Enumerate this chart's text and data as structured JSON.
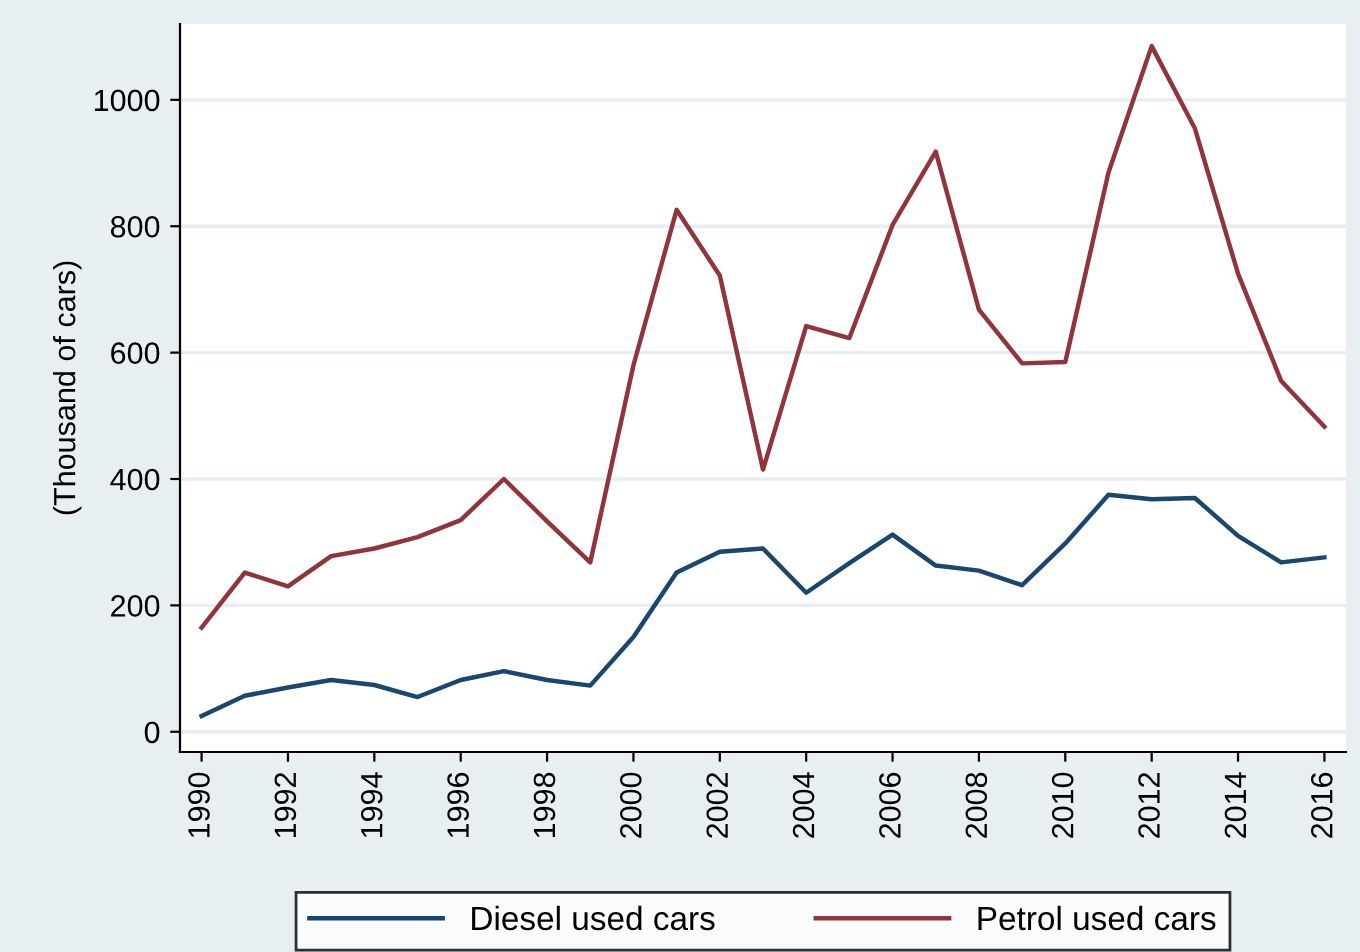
{
  "chart_data": {
    "type": "line",
    "ylabel": "(Thousand of cars)",
    "x": [
      1990,
      1991,
      1992,
      1993,
      1994,
      1995,
      1996,
      1997,
      1998,
      1999,
      2000,
      2001,
      2002,
      2003,
      2004,
      2005,
      2006,
      2007,
      2008,
      2009,
      2010,
      2011,
      2012,
      2013,
      2014,
      2015,
      2016
    ],
    "series": [
      {
        "name": "Diesel used cars",
        "color": "#1a476f",
        "values": [
          25,
          57,
          70,
          82,
          74,
          55,
          82,
          96,
          82,
          73,
          150,
          252,
          285,
          290,
          220,
          267,
          312,
          263,
          255,
          232,
          298,
          375,
          368,
          370,
          310,
          268,
          276
        ]
      },
      {
        "name": "Petrol used cars",
        "color": "#90353b",
        "values": [
          165,
          252,
          230,
          278,
          290,
          308,
          335,
          400,
          333,
          268,
          580,
          826,
          722,
          415,
          642,
          623,
          802,
          918,
          668,
          583,
          585,
          885,
          1085,
          955,
          725,
          555,
          483
        ]
      }
    ],
    "xlim": [
      1989.5,
      2016.5
    ],
    "xticks": [
      1990,
      1992,
      1994,
      1996,
      1998,
      2000,
      2002,
      2004,
      2006,
      2008,
      2010,
      2012,
      2014,
      2016
    ],
    "ylim": [
      -32,
      1120
    ],
    "yticks": [
      0,
      200,
      400,
      600,
      800,
      1000
    ],
    "grid": "y",
    "legend": "bottom",
    "marker": "none",
    "line_style": "solid"
  }
}
